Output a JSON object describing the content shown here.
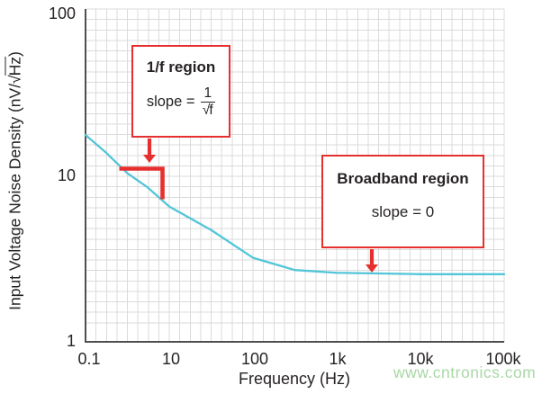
{
  "watermark": "www.cntronics.com",
  "colors": {
    "curve": "#52c5d8",
    "annotation_red": "#e6302f",
    "grid": "#dbdbdb",
    "axis": "#4f4f51",
    "text": "#272324",
    "watermark_green": "#a9d8a5"
  },
  "chart_data": {
    "type": "line",
    "title": "",
    "xlabel": "Frequency (Hz)",
    "ylabel": "Input Voltage Noise Density (nV/√Hz)",
    "x_scale": "log",
    "y_scale": "log",
    "xlim": [
      0.1,
      100000
    ],
    "ylim": [
      1,
      100
    ],
    "x_ticks": [
      "0.1",
      "10",
      "100",
      "1k",
      "10k",
      "100k"
    ],
    "x_tick_values": [
      0.1,
      10,
      100,
      1000,
      10000,
      100000
    ],
    "y_ticks": [
      "100",
      "10",
      "1"
    ],
    "y_tick_values": [
      100,
      10,
      1
    ],
    "grid": "fine uniform square grid, light gray",
    "legend": "none",
    "series": [
      {
        "name": "input voltage noise density",
        "color": "#52c5d8",
        "points": [
          [
            0.1,
            17.5
          ],
          [
            0.3,
            13.8
          ],
          [
            1,
            10.3
          ],
          [
            3,
            8.5
          ],
          [
            10,
            6.5
          ],
          [
            31.6,
            4.7
          ],
          [
            100,
            3.2
          ],
          [
            316,
            2.7
          ],
          [
            1000,
            2.6
          ],
          [
            10000,
            2.55
          ],
          [
            100000,
            2.55
          ]
        ]
      }
    ],
    "annotations": [
      {
        "id": "one-over-f-region",
        "title": "1/f region",
        "slope_prefix": "slope =",
        "slope_frac_num": "1",
        "slope_frac_den_sqrt_sym": "√",
        "slope_frac_den_arg": "f"
      },
      {
        "id": "broadband-region",
        "title": "Broadband region",
        "slope_label": "slope = 0"
      }
    ],
    "broadband_flat_value_nv": 2.55
  },
  "axes": {
    "x_title": "Frequency (Hz)",
    "y_title_main": "Input Voltage Noise Density (nV/",
    "y_title_sqrt_sym": "√",
    "y_title_sqrt_arg": "Hz",
    "y_title_suffix": ")"
  }
}
